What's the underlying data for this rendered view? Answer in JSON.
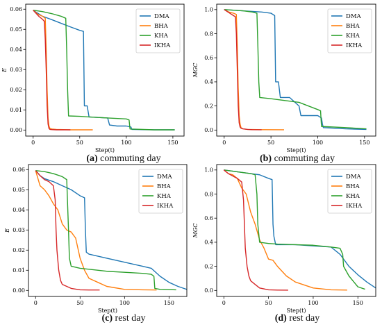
{
  "colors": {
    "DMA": "#1f77b4",
    "BHA": "#ff7f0e",
    "KHA": "#2ca02c",
    "IKHA": "#d62728"
  },
  "chart_data": [
    {
      "type": "line",
      "panel": "a",
      "caption_letter": "(a)",
      "caption_text": " commuting day",
      "xlabel": "Step(t)",
      "ylabel": "E",
      "xlim": [
        -8,
        162
      ],
      "ylim": [
        -0.003,
        0.0625
      ],
      "xticks": [
        0,
        50,
        100,
        150
      ],
      "xtick_labels": [
        "0",
        "50",
        "100",
        "150"
      ],
      "yticks": [
        0.0,
        0.01,
        0.02,
        0.03,
        0.04,
        0.05,
        0.06
      ],
      "ytick_labels": [
        "0.00",
        "0.01",
        "0.02",
        "0.03",
        "0.04",
        "0.05",
        "0.06"
      ],
      "legend": "top-right",
      "series": [
        {
          "name": "DMA",
          "color_key": "DMA",
          "x": [
            0,
            5,
            10,
            20,
            30,
            40,
            50,
            54,
            55,
            58,
            60,
            80,
            82,
            90,
            100,
            105,
            106,
            130,
            152
          ],
          "y": [
            0.0595,
            0.058,
            0.0565,
            0.0548,
            0.053,
            0.0512,
            0.0495,
            0.049,
            0.012,
            0.012,
            0.0065,
            0.006,
            0.0025,
            0.002,
            0.002,
            0.0015,
            0.0003,
            0.0001,
            0.0001
          ]
        },
        {
          "name": "BHA",
          "color_key": "BHA",
          "x": [
            0,
            5,
            10,
            13,
            14,
            15,
            16,
            17,
            18,
            20,
            25,
            40,
            64
          ],
          "y": [
            0.0595,
            0.0575,
            0.0565,
            0.0555,
            0.04,
            0.02,
            0.006,
            0.002,
            0.0008,
            0.0005,
            0.0003,
            0.0001,
            0.0001
          ]
        },
        {
          "name": "KHA",
          "color_key": "KHA",
          "x": [
            0,
            10,
            20,
            30,
            35,
            36,
            37,
            38,
            50,
            60,
            80,
            100,
            103,
            104,
            130,
            152
          ],
          "y": [
            0.0595,
            0.0588,
            0.0578,
            0.0565,
            0.0555,
            0.04,
            0.02,
            0.007,
            0.0068,
            0.0065,
            0.006,
            0.0055,
            0.005,
            0.0005,
            0.0001,
            0.0001
          ]
        },
        {
          "name": "IKHA",
          "color_key": "IKHA",
          "x": [
            0,
            3,
            6,
            10,
            12,
            13,
            14,
            15,
            16,
            17,
            18,
            20,
            25,
            30,
            40
          ],
          "y": [
            0.0595,
            0.058,
            0.0565,
            0.055,
            0.054,
            0.045,
            0.03,
            0.012,
            0.003,
            0.0008,
            0.0003,
            0.0002,
            0.0001,
            0.0001,
            0.0001
          ]
        }
      ]
    },
    {
      "type": "line",
      "panel": "b",
      "caption_letter": "(b)",
      "caption_text": " commuting day",
      "xlabel": "Step(t)",
      "ylabel": "MGC",
      "xlim": [
        -8,
        162
      ],
      "ylim": [
        -0.05,
        1.045
      ],
      "xticks": [
        0,
        50,
        100,
        150
      ],
      "xtick_labels": [
        "0",
        "50",
        "100",
        "150"
      ],
      "yticks": [
        0.0,
        0.2,
        0.4,
        0.6,
        0.8,
        1.0
      ],
      "ytick_labels": [
        "0.0",
        "0.2",
        "0.4",
        "0.6",
        "0.8",
        "1.0"
      ],
      "legend": "top-right",
      "series": [
        {
          "name": "DMA",
          "color_key": "DMA",
          "x": [
            0,
            10,
            20,
            30,
            40,
            50,
            54,
            55,
            58,
            60,
            70,
            80,
            82,
            90,
            100,
            104,
            105,
            106,
            130,
            152
          ],
          "y": [
            1.0,
            0.995,
            0.99,
            0.985,
            0.98,
            0.97,
            0.95,
            0.4,
            0.4,
            0.27,
            0.27,
            0.2,
            0.12,
            0.12,
            0.12,
            0.1,
            0.05,
            0.02,
            0.01,
            0.005
          ]
        },
        {
          "name": "BHA",
          "color_key": "BHA",
          "x": [
            0,
            5,
            10,
            13,
            14,
            15,
            16,
            17,
            18,
            20,
            25,
            40,
            64
          ],
          "y": [
            1.0,
            0.98,
            0.97,
            0.96,
            0.7,
            0.35,
            0.12,
            0.05,
            0.02,
            0.01,
            0.005,
            0.003,
            0.002
          ]
        },
        {
          "name": "KHA",
          "color_key": "KHA",
          "x": [
            0,
            10,
            20,
            30,
            35,
            36,
            37,
            38,
            50,
            60,
            80,
            100,
            103,
            104,
            130,
            152
          ],
          "y": [
            1.0,
            0.995,
            0.99,
            0.98,
            0.97,
            0.7,
            0.4,
            0.27,
            0.26,
            0.25,
            0.23,
            0.17,
            0.16,
            0.03,
            0.02,
            0.01
          ]
        },
        {
          "name": "IKHA",
          "color_key": "IKHA",
          "x": [
            0,
            3,
            6,
            10,
            12,
            13,
            14,
            15,
            16,
            17,
            18,
            20,
            25,
            30,
            40
          ],
          "y": [
            1.0,
            0.985,
            0.97,
            0.95,
            0.94,
            0.8,
            0.5,
            0.2,
            0.06,
            0.025,
            0.015,
            0.01,
            0.005,
            0.003,
            0.002
          ]
        }
      ]
    },
    {
      "type": "line",
      "panel": "c",
      "caption_letter": "(c)",
      "caption_text": " rest day",
      "xlabel": "Step(t)",
      "ylabel": "E",
      "xlim": [
        -8,
        170
      ],
      "ylim": [
        -0.003,
        0.0625
      ],
      "xticks": [
        0,
        50,
        100,
        150
      ],
      "xtick_labels": [
        "0",
        "50",
        "100",
        "150"
      ],
      "yticks": [
        0.0,
        0.01,
        0.02,
        0.03,
        0.04,
        0.05,
        0.06
      ],
      "ytick_labels": [
        "0.00",
        "0.01",
        "0.02",
        "0.03",
        "0.04",
        "0.05",
        "0.06"
      ],
      "legend": "top-right",
      "series": [
        {
          "name": "DMA",
          "color_key": "DMA",
          "x": [
            0,
            5,
            10,
            20,
            30,
            40,
            50,
            55,
            56,
            57,
            60,
            80,
            100,
            120,
            130,
            140,
            150,
            160,
            170
          ],
          "y": [
            0.0595,
            0.057,
            0.0555,
            0.054,
            0.052,
            0.05,
            0.047,
            0.046,
            0.03,
            0.019,
            0.018,
            0.016,
            0.014,
            0.012,
            0.011,
            0.007,
            0.004,
            0.002,
            0.0005
          ]
        },
        {
          "name": "BHA",
          "color_key": "BHA",
          "x": [
            0,
            5,
            10,
            15,
            20,
            25,
            30,
            35,
            40,
            45,
            50,
            55,
            60,
            70,
            80,
            100,
            120,
            136
          ],
          "y": [
            0.0595,
            0.052,
            0.05,
            0.047,
            0.043,
            0.04,
            0.033,
            0.03,
            0.029,
            0.026,
            0.016,
            0.01,
            0.006,
            0.004,
            0.002,
            0.0005,
            0.0003,
            0.0002
          ]
        },
        {
          "name": "KHA",
          "color_key": "KHA",
          "x": [
            0,
            10,
            20,
            30,
            35,
            37,
            38,
            40,
            50,
            60,
            80,
            100,
            120,
            130,
            133,
            134,
            140,
            158
          ],
          "y": [
            0.0595,
            0.059,
            0.058,
            0.0565,
            0.055,
            0.03,
            0.016,
            0.012,
            0.011,
            0.0105,
            0.0095,
            0.009,
            0.0085,
            0.008,
            0.007,
            0.001,
            0.0005,
            0.0003
          ]
        },
        {
          "name": "IKHA",
          "color_key": "IKHA",
          "x": [
            0,
            5,
            10,
            15,
            20,
            22,
            23,
            24,
            26,
            28,
            30,
            35,
            40,
            50,
            60,
            72
          ],
          "y": [
            0.0595,
            0.057,
            0.055,
            0.054,
            0.052,
            0.045,
            0.03,
            0.02,
            0.01,
            0.005,
            0.003,
            0.002,
            0.001,
            0.0003,
            0.0002,
            0.0002
          ]
        }
      ]
    },
    {
      "type": "line",
      "panel": "d",
      "caption_letter": "(d)",
      "caption_text": " rest day",
      "xlabel": "Step(t)",
      "ylabel": "MGC",
      "xlim": [
        -8,
        170
      ],
      "ylim": [
        -0.05,
        1.045
      ],
      "xticks": [
        0,
        50,
        100,
        150
      ],
      "xtick_labels": [
        "0",
        "50",
        "100",
        "150"
      ],
      "yticks": [
        0.0,
        0.2,
        0.4,
        0.6,
        0.8,
        1.0
      ],
      "ytick_labels": [
        "0.0",
        "0.2",
        "0.4",
        "0.6",
        "0.8",
        "1.0"
      ],
      "legend": "top-right",
      "series": [
        {
          "name": "DMA",
          "color_key": "DMA",
          "x": [
            0,
            10,
            20,
            30,
            40,
            50,
            54,
            55,
            56,
            58,
            60,
            80,
            100,
            120,
            130,
            140,
            150,
            160,
            170
          ],
          "y": [
            1.0,
            0.99,
            0.98,
            0.97,
            0.96,
            0.93,
            0.92,
            0.55,
            0.45,
            0.38,
            0.38,
            0.38,
            0.37,
            0.36,
            0.3,
            0.2,
            0.13,
            0.07,
            0.02
          ]
        },
        {
          "name": "BHA",
          "color_key": "BHA",
          "x": [
            0,
            5,
            10,
            15,
            20,
            25,
            30,
            35,
            40,
            45,
            50,
            55,
            60,
            70,
            80,
            100,
            120,
            138
          ],
          "y": [
            1.0,
            0.97,
            0.96,
            0.93,
            0.85,
            0.8,
            0.65,
            0.55,
            0.42,
            0.35,
            0.26,
            0.25,
            0.2,
            0.12,
            0.07,
            0.02,
            0.005,
            0.003
          ]
        },
        {
          "name": "KHA",
          "color_key": "KHA",
          "x": [
            0,
            10,
            20,
            30,
            35,
            37,
            38,
            40,
            50,
            60,
            80,
            100,
            120,
            130,
            133,
            134,
            140,
            150,
            158
          ],
          "y": [
            1.0,
            0.99,
            0.98,
            0.97,
            0.96,
            0.8,
            0.55,
            0.4,
            0.39,
            0.385,
            0.38,
            0.375,
            0.36,
            0.35,
            0.3,
            0.2,
            0.12,
            0.03,
            0.01
          ]
        },
        {
          "name": "IKHA",
          "color_key": "IKHA",
          "x": [
            0,
            5,
            10,
            15,
            20,
            22,
            23,
            24,
            26,
            28,
            30,
            35,
            40,
            50,
            60,
            72
          ],
          "y": [
            1.0,
            0.97,
            0.95,
            0.93,
            0.9,
            0.75,
            0.55,
            0.35,
            0.2,
            0.12,
            0.08,
            0.05,
            0.02,
            0.005,
            0.003,
            0.002
          ]
        }
      ]
    }
  ]
}
